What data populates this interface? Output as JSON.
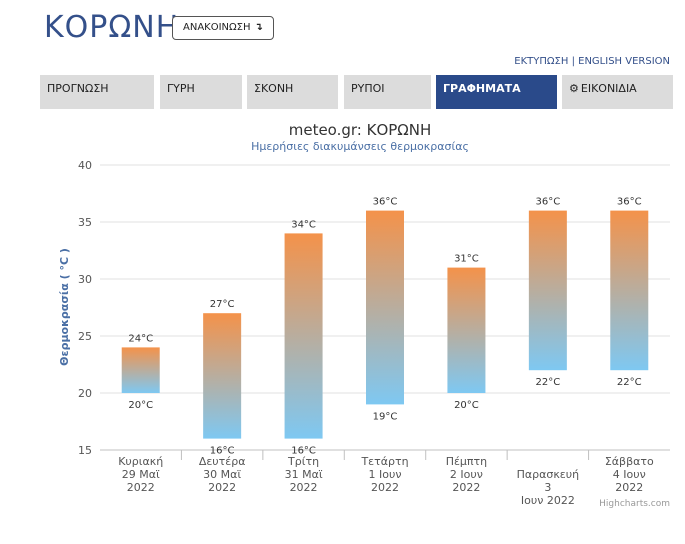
{
  "header": {
    "site_title": "ΚΟΡΩΝΗ",
    "announce_label": "ΑΝΑΚΟΙΝΩΣΗ",
    "announce_icon": "↴",
    "print_link": "ΕΚΤΥΠΩΣΗ",
    "separator": "|",
    "english_link": "ENGLISH VERSION"
  },
  "tabs": [
    {
      "label": "ΠΡΟΓΝΩΣΗ",
      "active": false
    },
    {
      "label": "ΓΥΡΗ",
      "active": false
    },
    {
      "label": "ΣΚΟΝΗ",
      "active": false
    },
    {
      "label": "ΡΥΠΟΙ",
      "active": false
    },
    {
      "label": "ΓΡΑΦΗΜΑΤΑ",
      "active": true
    },
    {
      "label": "ΕΙΚΟΝΙΔΙΑ",
      "active": false,
      "icon": "gear-icon"
    }
  ],
  "colors": {
    "accent": "#2a4a8a",
    "title": "#34508a",
    "bar_top": "#f4924a",
    "bar_bottom": "#7ec8f2",
    "tab_bg": "#dcdcdc"
  },
  "chart_data": {
    "type": "bar",
    "subtype": "columnrange",
    "title": "meteo.gr: ΚΟΡΩΝΗ",
    "subtitle": "Ημερήσιες διακυμάνσεις θερμοκρασίας",
    "ylabel": "Θερμοκρασία ( °C )",
    "ylim": [
      15,
      40
    ],
    "yticks": [
      "15",
      "20",
      "25",
      "30",
      "35",
      "40"
    ],
    "unit": "°C",
    "grid": true,
    "credits": "Highcharts.com",
    "categories": [
      [
        "Κυριακή",
        "29 Μαϊ",
        "2022"
      ],
      [
        "Δευτέρα",
        "30 Μαϊ",
        "2022"
      ],
      [
        "Τρίτη",
        "31 Μαϊ",
        "2022"
      ],
      [
        "Τετάρτη",
        "1 Ιουν",
        "2022"
      ],
      [
        "Πέμπτη",
        "2 Ιουν",
        "2022"
      ],
      [
        "Παρασκευή",
        "3",
        "Ιουν 2022"
      ],
      [
        "Σάββατο",
        "4 Ιουν",
        "2022"
      ]
    ],
    "low": [
      20,
      16,
      16,
      19,
      20,
      22,
      22
    ],
    "high": [
      24,
      27,
      34,
      36,
      31,
      36,
      36
    ]
  }
}
